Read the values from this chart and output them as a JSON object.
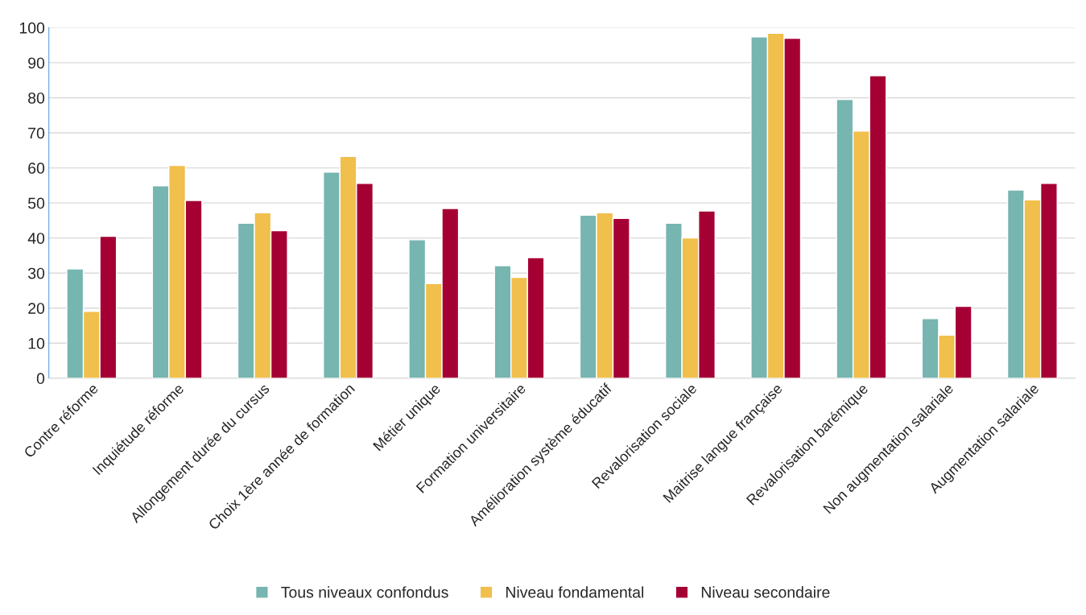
{
  "chart_data": {
    "type": "bar",
    "categories": [
      "Contre réforme",
      "Inquiétude réforme",
      "Allongement durée du cursus",
      "Choix 1ère année de formation",
      "Métier unique",
      "Formation universitaire",
      "Amélioration système éducatif",
      "Revalorisation sociale",
      "Maitrise langue française",
      "Revalorisation barémique",
      "Non augmentation salariale",
      "Augmentation salariale"
    ],
    "series": [
      {
        "name": "Tous niveaux confondus",
        "color": "#76b5b0",
        "values": [
          31.2,
          54.9,
          44.2,
          58.8,
          39.5,
          32.1,
          46.5,
          44.2,
          97.4,
          79.5,
          17.0,
          53.7
        ]
      },
      {
        "name": "Niveau fondamental",
        "color": "#f0bf4c",
        "values": [
          19.1,
          60.7,
          47.2,
          63.3,
          27.0,
          28.8,
          47.2,
          40.0,
          98.4,
          70.5,
          12.3,
          50.9
        ]
      },
      {
        "name": "Niveau secondaire",
        "color": "#a50034",
        "values": [
          40.5,
          50.7,
          42.1,
          55.6,
          48.4,
          34.4,
          45.6,
          47.7,
          97.0,
          86.3,
          20.5,
          55.6
        ]
      }
    ],
    "ylim": [
      0,
      100
    ],
    "yticks": [
      0,
      10,
      20,
      30,
      40,
      50,
      60,
      70,
      80,
      90,
      100
    ],
    "grid": "y",
    "legend": "bottom"
  }
}
